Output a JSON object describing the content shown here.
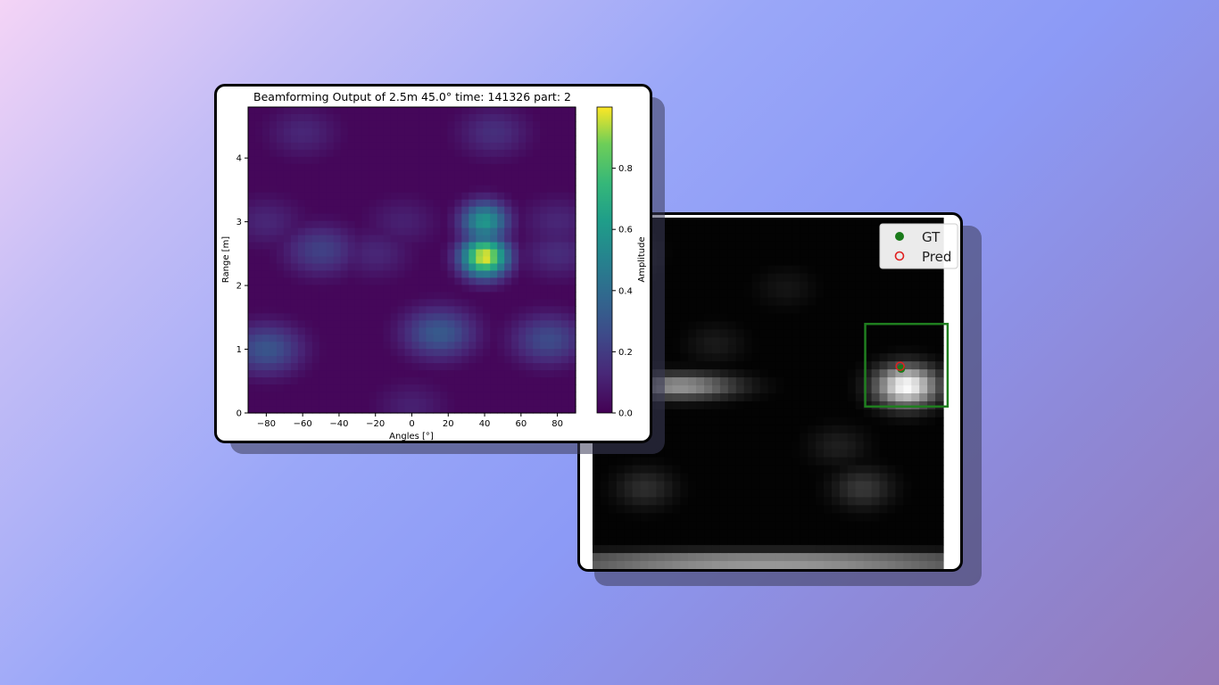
{
  "chart_data": [
    {
      "type": "heatmap",
      "title": "Beamforming Output of 2.5m 45.0° time: 141326 part: 2",
      "xlabel": "Angles [°]",
      "ylabel": "Range [m]",
      "xlim": [
        -90,
        90
      ],
      "ylim": [
        0,
        4.8
      ],
      "xticks": [
        "−80",
        "−60",
        "−40",
        "−20",
        "0",
        "20",
        "40",
        "60",
        "80"
      ],
      "xtick_values": [
        -80,
        -60,
        -40,
        -20,
        0,
        20,
        40,
        60,
        80
      ],
      "yticks": [
        "0",
        "1",
        "2",
        "3",
        "4"
      ],
      "ytick_values": [
        0,
        1,
        2,
        3,
        4
      ],
      "colormap": "viridis",
      "colorbar": {
        "label": "Amplitude",
        "range": [
          0,
          1
        ],
        "ticks": [
          "0.0",
          "0.2",
          "0.4",
          "0.6",
          "0.8"
        ],
        "tick_values": [
          0,
          0.2,
          0.4,
          0.6,
          0.8
        ]
      },
      "peaks": [
        {
          "angle": 40,
          "range": 2.45,
          "amplitude": 1.0
        },
        {
          "angle": 40,
          "range": 3.0,
          "amplitude": 0.6
        },
        {
          "angle": 15,
          "range": 1.25,
          "amplitude": 0.32
        },
        {
          "angle": -80,
          "range": 1.0,
          "amplitude": 0.3
        },
        {
          "angle": 75,
          "range": 1.15,
          "amplitude": 0.26
        },
        {
          "angle": -50,
          "range": 2.55,
          "amplitude": 0.22
        }
      ]
    },
    {
      "type": "heatmap",
      "colormap": "gray",
      "legend": {
        "position": "top-right",
        "entries": [
          {
            "label": "GT",
            "color": "#1a7a1a",
            "marker": "filled-circle"
          },
          {
            "label": "Pred",
            "color": "#e02020",
            "marker": "open-circle"
          }
        ]
      },
      "detection_box": {
        "color": "#1f7f1f",
        "label": "Pred"
      },
      "points": [
        {
          "name": "GT",
          "u": 0.88,
          "v": 0.43
        },
        {
          "name": "Pred",
          "u": 0.877,
          "v": 0.423
        }
      ],
      "blobs": [
        {
          "u": 0.895,
          "v": 0.48,
          "amplitude": 1.0
        },
        {
          "u": 0.25,
          "v": 0.48,
          "amplitude": 0.6
        },
        {
          "u": 0.5,
          "v": 0.98,
          "amplitude": 0.65
        },
        {
          "u": 0.77,
          "v": 0.77,
          "amplitude": 0.22
        },
        {
          "u": 0.15,
          "v": 0.77,
          "amplitude": 0.18
        }
      ]
    }
  ]
}
